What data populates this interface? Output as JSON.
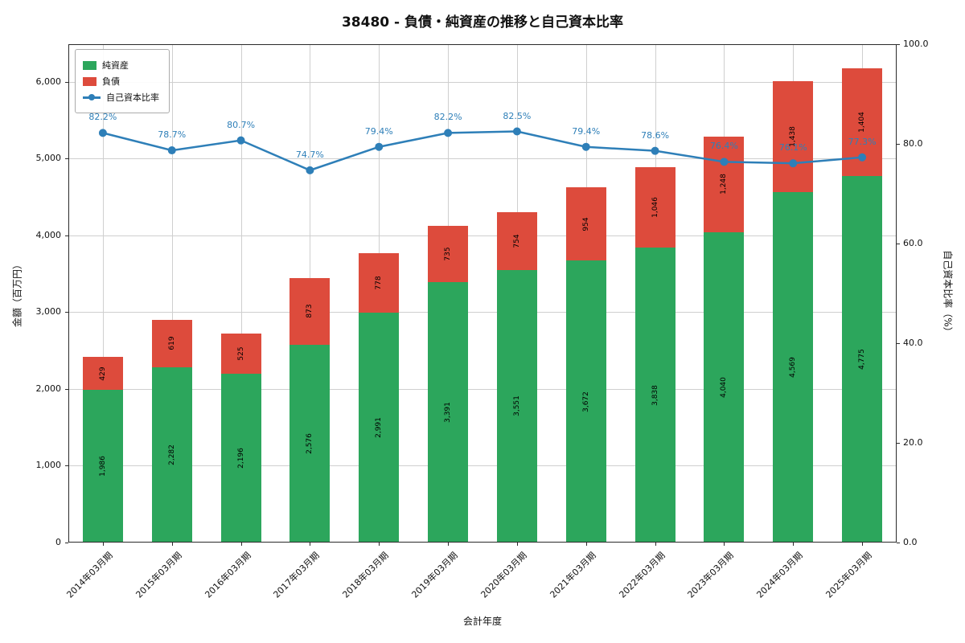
{
  "colors": {
    "equity": "#2CA65C",
    "liabilities": "#DD4B3C",
    "ratio": "#2E7FB8"
  },
  "chart_data": {
    "type": "stacked-bar+line",
    "title": "38480 - 負債・純資産の推移と自己資本比率",
    "xlabel": "会計年度",
    "ylabel_left": "金額（百万円）",
    "ylabel_right": "自己資本比率（%）",
    "categories": [
      "2014年03月期",
      "2015年03月期",
      "2016年03月期",
      "2017年03月期",
      "2018年03月期",
      "2019年03月期",
      "2020年03月期",
      "2021年03月期",
      "2022年03月期",
      "2023年03月期",
      "2024年03月期",
      "2025年03月期"
    ],
    "series": [
      {
        "name": "純資産",
        "color_key": "equity",
        "values": [
          1986,
          2282,
          2196,
          2576,
          2991,
          3391,
          3551,
          3672,
          3838,
          4040,
          4569,
          4775
        ]
      },
      {
        "name": "負債",
        "color_key": "liabilities",
        "values": [
          429,
          619,
          525,
          873,
          778,
          735,
          754,
          954,
          1046,
          1248,
          1438,
          1404
        ]
      },
      {
        "name": "自己資本比率",
        "color_key": "ratio",
        "unit": "%",
        "values": [
          82.2,
          78.7,
          80.7,
          74.7,
          79.4,
          82.2,
          82.5,
          79.4,
          78.6,
          76.4,
          76.1,
          77.3
        ]
      }
    ],
    "ylim_left": [
      0,
      6490
    ],
    "ylim_right": [
      0,
      100
    ],
    "yticks_left": [
      0,
      1000,
      2000,
      3000,
      4000,
      5000,
      6000
    ],
    "yticks_right": [
      0,
      20,
      40,
      60,
      80,
      100
    ],
    "grid": true,
    "legend_position": "upper left"
  }
}
